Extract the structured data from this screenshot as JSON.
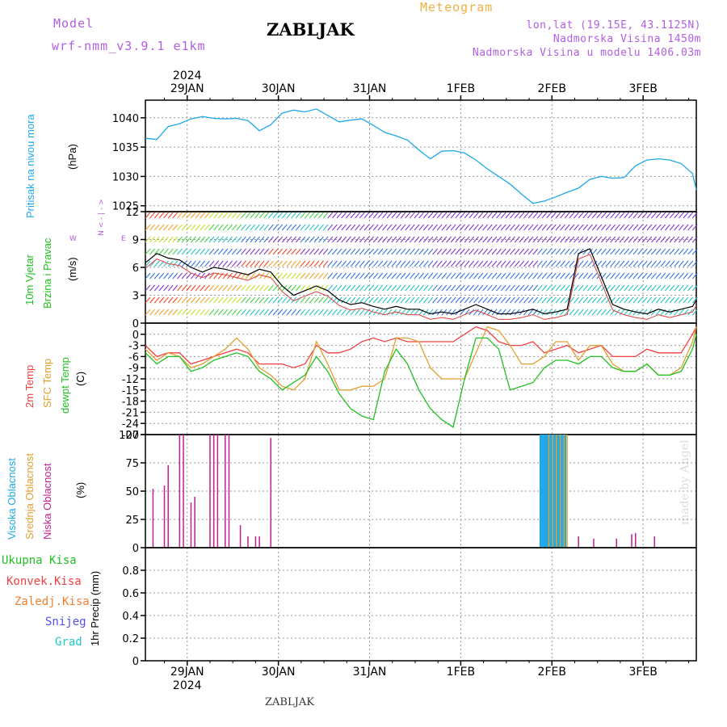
{
  "header": {
    "model_label": "Model",
    "model_name": "wrf-nmm_v3.9.1 e1km",
    "title": "ZABLJAK",
    "meteogram_label": "Meteogram",
    "lonlat": "lon,lat (19.15E, 43.1125N)",
    "altitude": "Nadmorska Visina 1450m",
    "model_altitude": "Nadmorska Visina u modelu 1406.03m",
    "bottom_title": "ZABLJAK",
    "credit": "made by Angel"
  },
  "colors": {
    "purple": "#b25ee0",
    "orange": "#f0b040",
    "blue": "#1fa8e8",
    "green": "#20c020",
    "red": "#f04040",
    "darkorange": "#f08030",
    "snow": "#5050f0",
    "hail": "#20c8c8",
    "magenta": "#c02090",
    "sfc": "#e0a030"
  },
  "chart_data": [
    {
      "type": "line",
      "panel": "pressure",
      "ylabel_lines": [
        "Pritisak na nivou mora"
      ],
      "unit": "(hPa)",
      "ylim": [
        1024,
        1043
      ],
      "yticks": [
        1025,
        1030,
        1035,
        1040
      ],
      "x_start": "2024-01-28 13:00",
      "x_end": "2024-02-03 14:00",
      "top_axis": {
        "year": "2024",
        "labels": [
          "29JAN",
          "30JAN",
          "31JAN",
          "1FEB",
          "2FEB",
          "3FEB"
        ]
      },
      "bottom_axis": {
        "year": "2024",
        "labels": [
          "29JAN",
          "30JAN",
          "31JAN",
          "1FEB",
          "2FEB",
          "3FEB"
        ]
      },
      "series": [
        {
          "values_x_hours": [
            0,
            3,
            6,
            9,
            12,
            15,
            18,
            21,
            24,
            27,
            30,
            33,
            36,
            39,
            42,
            45,
            48,
            51,
            54,
            57,
            60,
            63,
            66,
            69,
            72,
            75,
            78,
            81,
            84,
            87,
            90,
            93,
            96,
            99,
            102,
            105,
            108,
            111,
            114,
            117,
            120,
            123,
            126,
            129,
            132,
            135,
            138,
            141,
            144,
            145
          ],
          "values": [
            1036.5,
            1036.3,
            1038.5,
            1039.0,
            1039.8,
            1040.2,
            1039.9,
            1039.8,
            1039.9,
            1039.5,
            1037.8,
            1038.8,
            1040.8,
            1041.3,
            1041.0,
            1041.5,
            1040.4,
            1039.3,
            1039.6,
            1039.8,
            1038.7,
            1037.5,
            1036.9,
            1036.2,
            1034.5,
            1033.0,
            1034.3,
            1034.4,
            1034.0,
            1032.8,
            1031.3,
            1030.0,
            1028.7,
            1027.0,
            1025.4,
            1025.8,
            1026.5,
            1027.3,
            1028.0,
            1029.5,
            1030.0,
            1029.7,
            1029.8,
            1031.8,
            1032.8,
            1033.0,
            1032.8,
            1032.2,
            1030.5,
            1027.7
          ]
        }
      ]
    },
    {
      "type": "line",
      "panel": "wind",
      "ylabel_lines": [
        "10m Vjetar",
        "Brzina i Pravac"
      ],
      "unit": "(m/s)",
      "compass": [
        "N",
        "E",
        "W"
      ],
      "ylim": [
        0,
        12
      ],
      "yticks": [
        0,
        3,
        6,
        9,
        12
      ],
      "series": [
        {
          "name": "wind speed",
          "values_x_hours": [
            0,
            3,
            6,
            9,
            12,
            15,
            18,
            21,
            24,
            27,
            30,
            33,
            36,
            39,
            42,
            45,
            48,
            51,
            54,
            57,
            60,
            63,
            66,
            69,
            72,
            75,
            78,
            81,
            84,
            87,
            90,
            93,
            96,
            99,
            102,
            105,
            108,
            111,
            114,
            117,
            120,
            123,
            126,
            129,
            132,
            135,
            138,
            141,
            144,
            145
          ],
          "values": [
            6.5,
            7.5,
            7.0,
            6.8,
            6.0,
            5.5,
            6.0,
            5.8,
            5.5,
            5.2,
            5.8,
            5.5,
            4.0,
            3.0,
            3.5,
            4.0,
            3.5,
            2.5,
            2.0,
            2.2,
            1.8,
            1.5,
            1.8,
            1.5,
            1.5,
            1.0,
            1.2,
            1.0,
            1.5,
            2.0,
            1.5,
            1.0,
            1.0,
            1.2,
            1.5,
            1.0,
            1.2,
            1.5,
            7.5,
            8.0,
            5.0,
            2.0,
            1.5,
            1.2,
            1.0,
            1.5,
            1.2,
            1.5,
            1.8,
            2.5
          ]
        }
      ]
    },
    {
      "type": "line",
      "panel": "temperature",
      "ylabel_lines": [
        "2m Temp",
        "SFC Temp",
        "dewpt Temp"
      ],
      "unit": "(C)",
      "ylim": [
        -27,
        3
      ],
      "yticks": [
        0,
        -3,
        -6,
        -9,
        -12,
        -15,
        -18,
        -21,
        -24,
        -27
      ],
      "series": [
        {
          "name": "2m Temp",
          "values_x_hours": [
            0,
            3,
            6,
            9,
            12,
            15,
            18,
            21,
            24,
            27,
            30,
            33,
            36,
            39,
            42,
            45,
            48,
            51,
            54,
            57,
            60,
            63,
            66,
            69,
            72,
            75,
            78,
            81,
            84,
            87,
            90,
            93,
            96,
            99,
            102,
            105,
            108,
            111,
            114,
            117,
            120,
            123,
            126,
            129,
            132,
            135,
            138,
            141,
            144,
            145
          ],
          "values": [
            -3,
            -6,
            -5,
            -5,
            -8,
            -7,
            -6,
            -5,
            -4,
            -5,
            -8,
            -8,
            -8,
            -9,
            -8,
            -3,
            -5,
            -5,
            -4,
            -2,
            -1,
            -2,
            -1,
            -2,
            -2,
            -2,
            -2,
            -2,
            0,
            2,
            1,
            -2,
            -3,
            -3,
            -2,
            -5,
            -4,
            -3,
            -5,
            -4,
            -3,
            -6,
            -6,
            -6,
            -4,
            -5,
            -5,
            -5,
            0,
            2
          ]
        },
        {
          "name": "SFC Temp",
          "values_x_hours": [
            0,
            3,
            6,
            9,
            12,
            15,
            18,
            21,
            24,
            27,
            30,
            33,
            36,
            39,
            42,
            45,
            48,
            51,
            54,
            57,
            60,
            63,
            66,
            69,
            72,
            75,
            78,
            81,
            84,
            87,
            90,
            93,
            96,
            99,
            102,
            105,
            108,
            111,
            114,
            117,
            120,
            123,
            126,
            129,
            132,
            135,
            138,
            141,
            144,
            145
          ],
          "values": [
            -4,
            -7,
            -5,
            -6,
            -9,
            -8,
            -6,
            -4,
            -1,
            -4,
            -9,
            -11,
            -14,
            -15,
            -12,
            -2,
            -8,
            -15,
            -15,
            -14,
            -14,
            -12,
            -1,
            -1,
            -2,
            -9,
            -12,
            -12,
            -12,
            -5,
            2,
            1,
            -3,
            -8,
            -8,
            -6,
            -2,
            -2,
            -7,
            -3,
            -3,
            -8,
            -10,
            -10,
            -8,
            -11,
            -11,
            -9,
            -2,
            2
          ]
        },
        {
          "name": "dewpt Temp",
          "values_x_hours": [
            0,
            3,
            6,
            9,
            12,
            15,
            18,
            21,
            24,
            27,
            30,
            33,
            36,
            39,
            42,
            45,
            48,
            51,
            54,
            57,
            60,
            63,
            66,
            69,
            72,
            75,
            78,
            81,
            84,
            87,
            90,
            93,
            96,
            99,
            102,
            105,
            108,
            111,
            114,
            117,
            120,
            123,
            126,
            129,
            132,
            135,
            138,
            141,
            144,
            145
          ],
          "values": [
            -5,
            -8,
            -6,
            -6,
            -10,
            -9,
            -7,
            -6,
            -5,
            -6,
            -10,
            -12,
            -15,
            -13,
            -11,
            -6,
            -10,
            -16,
            -20,
            -22,
            -23,
            -10,
            -4,
            -8,
            -15,
            -20,
            -23,
            -25,
            -12,
            -1,
            -1,
            -4,
            -15,
            -14,
            -13,
            -9,
            -7,
            -7,
            -8,
            -6,
            -6,
            -9,
            -10,
            -10,
            -8,
            -11,
            -11,
            -10,
            -4,
            0
          ]
        }
      ]
    },
    {
      "type": "bar",
      "panel": "cloud",
      "ylabel_lines": [
        "Visoka Oblacnost",
        "Srednja Oblacnost",
        "Niska Oblacnost"
      ],
      "unit": "(%)",
      "ylim": [
        0,
        100
      ],
      "yticks": [
        0,
        25,
        50,
        75,
        100
      ],
      "series": [
        {
          "name": "Niska Oblacnost",
          "values_x_hours": [
            2,
            5,
            6,
            9,
            10,
            12,
            13,
            17,
            18,
            19,
            21,
            22,
            25,
            27,
            29,
            30,
            33
          ],
          "values": [
            52,
            55,
            73,
            100,
            100,
            40,
            45,
            100,
            100,
            100,
            100,
            100,
            20,
            10,
            10,
            10,
            97
          ]
        },
        {
          "name": "Visoka Oblacnost",
          "values_x_hours": [
            104,
            104.5,
            105,
            105.5,
            106,
            106.5,
            107,
            107.5,
            108,
            108.5,
            109,
            109.5,
            110,
            110.5
          ],
          "values": [
            100,
            100,
            100,
            100,
            100,
            100,
            100,
            100,
            100,
            100,
            100,
            100,
            100,
            100
          ]
        },
        {
          "name": "Srednja Oblacnost",
          "values_x_hours": [
            106.2,
            107.2,
            108.2,
            109.2,
            110.2,
            111
          ],
          "values": [
            100,
            100,
            100,
            100,
            100,
            100
          ]
        },
        {
          "name": "Niska Oblacnost (later)",
          "values_x_hours": [
            114,
            118,
            124,
            128,
            129,
            134
          ],
          "values": [
            10,
            8,
            8,
            12,
            13,
            10
          ]
        }
      ]
    },
    {
      "type": "bar",
      "panel": "precip",
      "ylabel_lines": [
        "1hr Precip"
      ],
      "unit": "(mm)",
      "legend": [
        "Ukupna Kisa",
        "Konvek.Kisa",
        "Zaledj.Kisa",
        "Snijeg",
        "Grad"
      ],
      "ylim": [
        0,
        1.0
      ],
      "yticks": [
        0,
        0.2,
        0.4,
        0.6,
        0.8
      ],
      "series": []
    }
  ]
}
